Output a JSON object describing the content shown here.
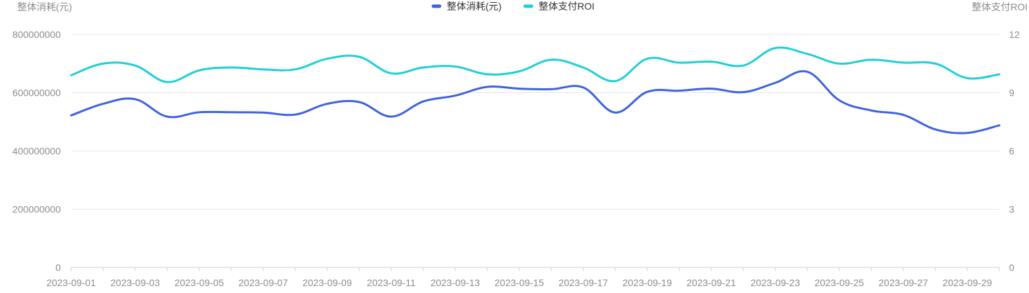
{
  "chart_data": {
    "type": "line",
    "title": "",
    "x": [
      "2023-09-01",
      "2023-09-02",
      "2023-09-03",
      "2023-09-04",
      "2023-09-05",
      "2023-09-06",
      "2023-09-07",
      "2023-09-08",
      "2023-09-09",
      "2023-09-10",
      "2023-09-11",
      "2023-09-12",
      "2023-09-13",
      "2023-09-14",
      "2023-09-15",
      "2023-09-16",
      "2023-09-17",
      "2023-09-18",
      "2023-09-19",
      "2023-09-20",
      "2023-09-21",
      "2023-09-22",
      "2023-09-23",
      "2023-09-24",
      "2023-09-25",
      "2023-09-26",
      "2023-09-27",
      "2023-09-28",
      "2023-09-29",
      "2023-09-30"
    ],
    "x_tick_labels": [
      "2023-09-01",
      "2023-09-03",
      "2023-09-05",
      "2023-09-07",
      "2023-09-09",
      "2023-09-11",
      "2023-09-13",
      "2023-09-15",
      "2023-09-17",
      "2023-09-19",
      "2023-09-21",
      "2023-09-23",
      "2023-09-25",
      "2023-09-27",
      "2023-09-29"
    ],
    "y_left": {
      "label": "整体消耗(元)",
      "range": [
        0,
        800000000
      ],
      "ticks": [
        "0",
        "200000000",
        "400000000",
        "600000000",
        "800000000"
      ],
      "tick_values": [
        0,
        200000000,
        400000000,
        600000000,
        800000000
      ]
    },
    "y_right": {
      "label": "整体支付ROI",
      "range": [
        0,
        12
      ],
      "ticks": [
        "0",
        "3",
        "6",
        "9",
        "12"
      ],
      "tick_values": [
        0,
        3,
        6,
        9,
        12
      ]
    },
    "grid": true,
    "legend_position": "top-center",
    "series": [
      {
        "name": "整体消耗(元)",
        "axis": "left",
        "color": "#3d63dd",
        "values": [
          522000000,
          562000000,
          578000000,
          518000000,
          533000000,
          533000000,
          532000000,
          525000000,
          562000000,
          568000000,
          518000000,
          570000000,
          590000000,
          620000000,
          614000000,
          612000000,
          618000000,
          532000000,
          603000000,
          607000000,
          614000000,
          602000000,
          634000000,
          672000000,
          574000000,
          539000000,
          524000000,
          474000000,
          462000000,
          488000000
        ]
      },
      {
        "name": "整体支付ROI",
        "axis": "right",
        "color": "#1ecfd6",
        "values": [
          9.9,
          10.5,
          10.4,
          9.55,
          10.15,
          10.3,
          10.2,
          10.2,
          10.75,
          10.85,
          10.0,
          10.3,
          10.35,
          9.95,
          10.1,
          10.7,
          10.3,
          9.6,
          10.75,
          10.55,
          10.6,
          10.4,
          11.3,
          11.0,
          10.5,
          10.7,
          10.55,
          10.5,
          9.75,
          9.95
        ]
      }
    ]
  }
}
